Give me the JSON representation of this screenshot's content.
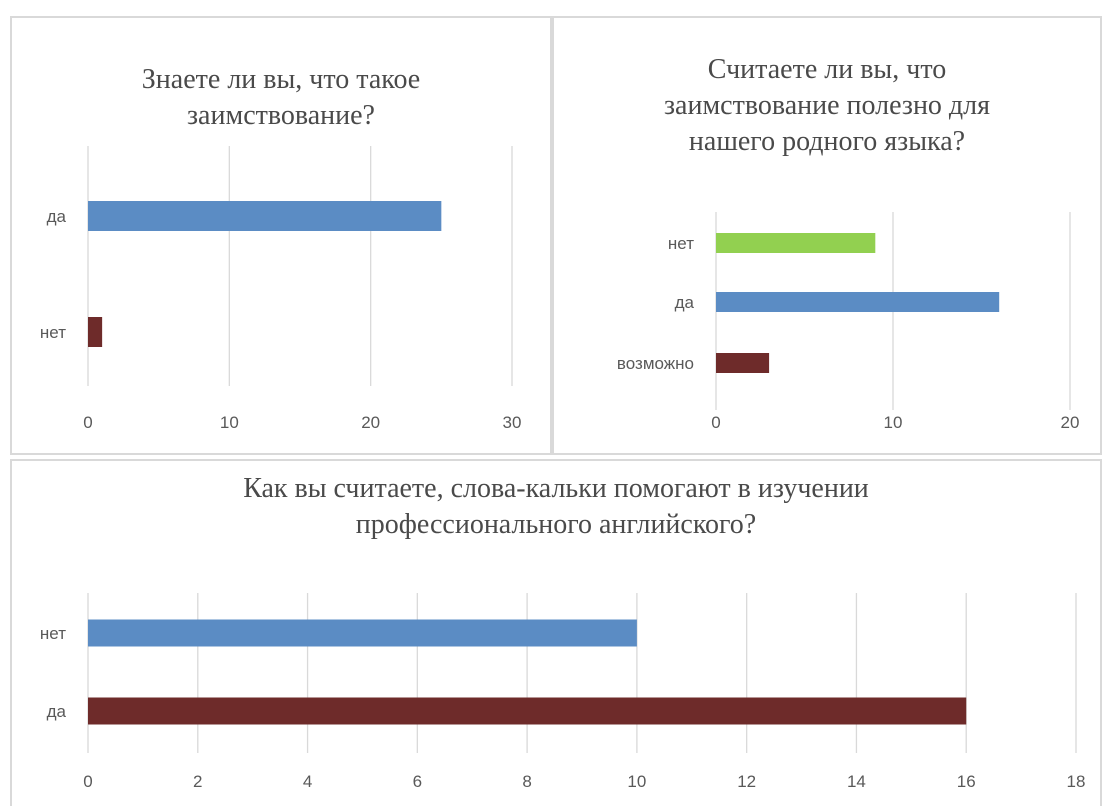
{
  "chart_data": [
    {
      "type": "bar",
      "orientation": "horizontal",
      "title": "Знаете ли вы, что такое\nзаимствование?",
      "categories": [
        "да",
        "нет"
      ],
      "values": [
        25,
        1
      ],
      "colors": [
        "#5b8cc4",
        "#6e2b2a"
      ],
      "xlim": [
        0,
        30
      ],
      "xticks": [
        0,
        10,
        20,
        30
      ],
      "grid": true
    },
    {
      "type": "bar",
      "orientation": "horizontal",
      "title": "Считаете ли вы, что\nзаимствование полезно для\nнашего родного языка?",
      "categories": [
        "нет",
        "да",
        "возможно"
      ],
      "values": [
        9,
        16,
        3
      ],
      "colors": [
        "#92d050",
        "#5b8cc4",
        "#6e2b2a"
      ],
      "xlim": [
        0,
        20
      ],
      "xticks": [
        0,
        10,
        20
      ],
      "grid": true
    },
    {
      "type": "bar",
      "orientation": "horizontal",
      "title": "Как вы считаете, слова-кальки помогают в изучении\nпрофессионального английского?",
      "categories": [
        "нет",
        "да"
      ],
      "values": [
        10,
        16
      ],
      "colors": [
        "#5b8cc4",
        "#6e2b2a"
      ],
      "xlim": [
        0,
        18
      ],
      "xticks": [
        0,
        2,
        4,
        6,
        8,
        10,
        12,
        14,
        16,
        18
      ],
      "grid": true
    }
  ]
}
